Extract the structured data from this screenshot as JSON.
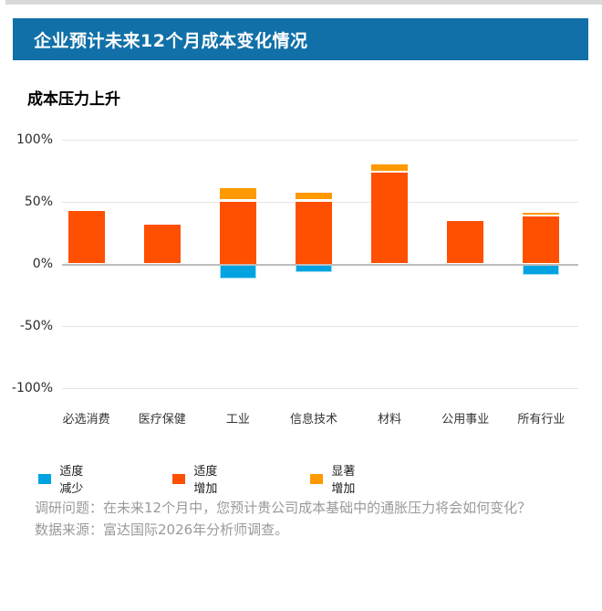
{
  "header": {
    "title": "企业预计未来12个月成本变化情况",
    "bg_color": "#1170A8"
  },
  "subtitle": "成本压力上升",
  "chart_data": {
    "type": "bar",
    "stacked": true,
    "title": "成本压力上升",
    "xlabel": "",
    "ylabel": "",
    "categories": [
      "必选消费",
      "医疗保健",
      "工业",
      "信息技术",
      "材料",
      "公用事业",
      "所有行业"
    ],
    "series": [
      {
        "name": "适度减少",
        "color": "#00A3E1",
        "values": [
          0,
          0,
          -12,
          -7,
          0,
          0,
          -9
        ]
      },
      {
        "name": "适度增加",
        "color": "#FF4F00",
        "values": [
          42,
          31,
          50,
          50,
          73,
          34,
          38
        ]
      },
      {
        "name": "显著增加",
        "color": "#FF9900",
        "values": [
          0,
          0,
          11,
          7,
          7,
          0,
          3
        ]
      }
    ],
    "ylim": [
      -100,
      100
    ],
    "yticks": [
      {
        "label": "100%",
        "value": 100
      },
      {
        "label": "50%",
        "value": 50
      },
      {
        "label": "0%",
        "value": 0
      },
      {
        "label": "-50%",
        "value": -50
      },
      {
        "label": "-100%",
        "value": -100
      }
    ],
    "grid": true,
    "legend_position": "bottom"
  },
  "legend": {
    "items": [
      {
        "label": "适度减少",
        "color": "#00A3E1"
      },
      {
        "label": "适度增加",
        "color": "#FF4F00"
      },
      {
        "label": "显著增加",
        "color": "#FF9900"
      }
    ]
  },
  "footer": {
    "survey_question": "调研问题：在未来12个月中，您预计贵公司成本基础中的通胀压力将会如何变化？",
    "data_source": "数据来源：富达国际2026年分析师调查。"
  }
}
